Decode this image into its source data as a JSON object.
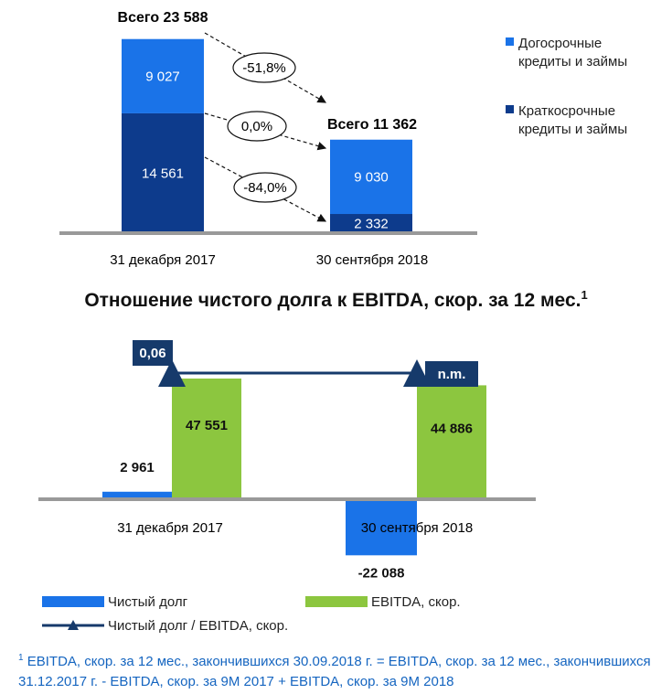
{
  "colors": {
    "long_term": "#1a73e8",
    "short_term": "#0d3b8c",
    "net_debt": "#1a73e8",
    "ebitda": "#8cc63f",
    "ratio_box": "#163a6b",
    "axis": "#999999"
  },
  "chart_data": [
    {
      "type": "bar",
      "stacked": true,
      "categories": [
        "31 декабря 2017",
        "30 сентября 2018"
      ],
      "series": [
        {
          "name": "Краткосрочные кредиты и займы",
          "values": [
            14561,
            2332
          ],
          "labels": [
            "14 561",
            "2 332"
          ]
        },
        {
          "name": "Догосрочные кредиты и займы",
          "values": [
            9027,
            9030
          ],
          "labels": [
            "9 027",
            "9 030"
          ]
        }
      ],
      "totals": [
        "Всего 23 588",
        "Всего 11 362"
      ],
      "changes": [
        "-51,8%",
        "0,0%",
        "-84,0%"
      ],
      "legend": [
        "Догосрочные кредиты и займы",
        "Краткосрочные кредиты и займы"
      ],
      "ylim": [
        0,
        25000
      ]
    },
    {
      "type": "bar",
      "title": "Отношение чистого долга к EBITDA, скор. за 12 мес.",
      "title_sup": "1",
      "categories": [
        "31 декабря 2017",
        "30 сентября 2018"
      ],
      "series": [
        {
          "name": "Чистый долг",
          "values": [
            2961,
            -22088
          ],
          "labels": [
            "2 961",
            "-22 088"
          ]
        },
        {
          "name": "EBITDA, скор.",
          "values": [
            47551,
            44886
          ],
          "labels": [
            "47 551",
            "44 886"
          ]
        }
      ],
      "ratio": {
        "name": "Чистый долг / EBITDA, скор.",
        "labels": [
          "0,06",
          "n.m."
        ]
      },
      "legend": [
        "Чистый долг",
        "EBITDA, скор.",
        "Чистый долг / EBITDA, скор."
      ],
      "ylim": [
        -25000,
        60000
      ]
    }
  ],
  "footnote": {
    "sup": "1",
    "text": " EBITDA, скор. за 12 мес., закончившихся 30.09.2018 г. = EBITDA, скор. за 12 мес., закончившихся 31.12.2017 г. - EBITDA, скор. за 9М 2017 + EBITDA, скор. за 9М 2018"
  }
}
